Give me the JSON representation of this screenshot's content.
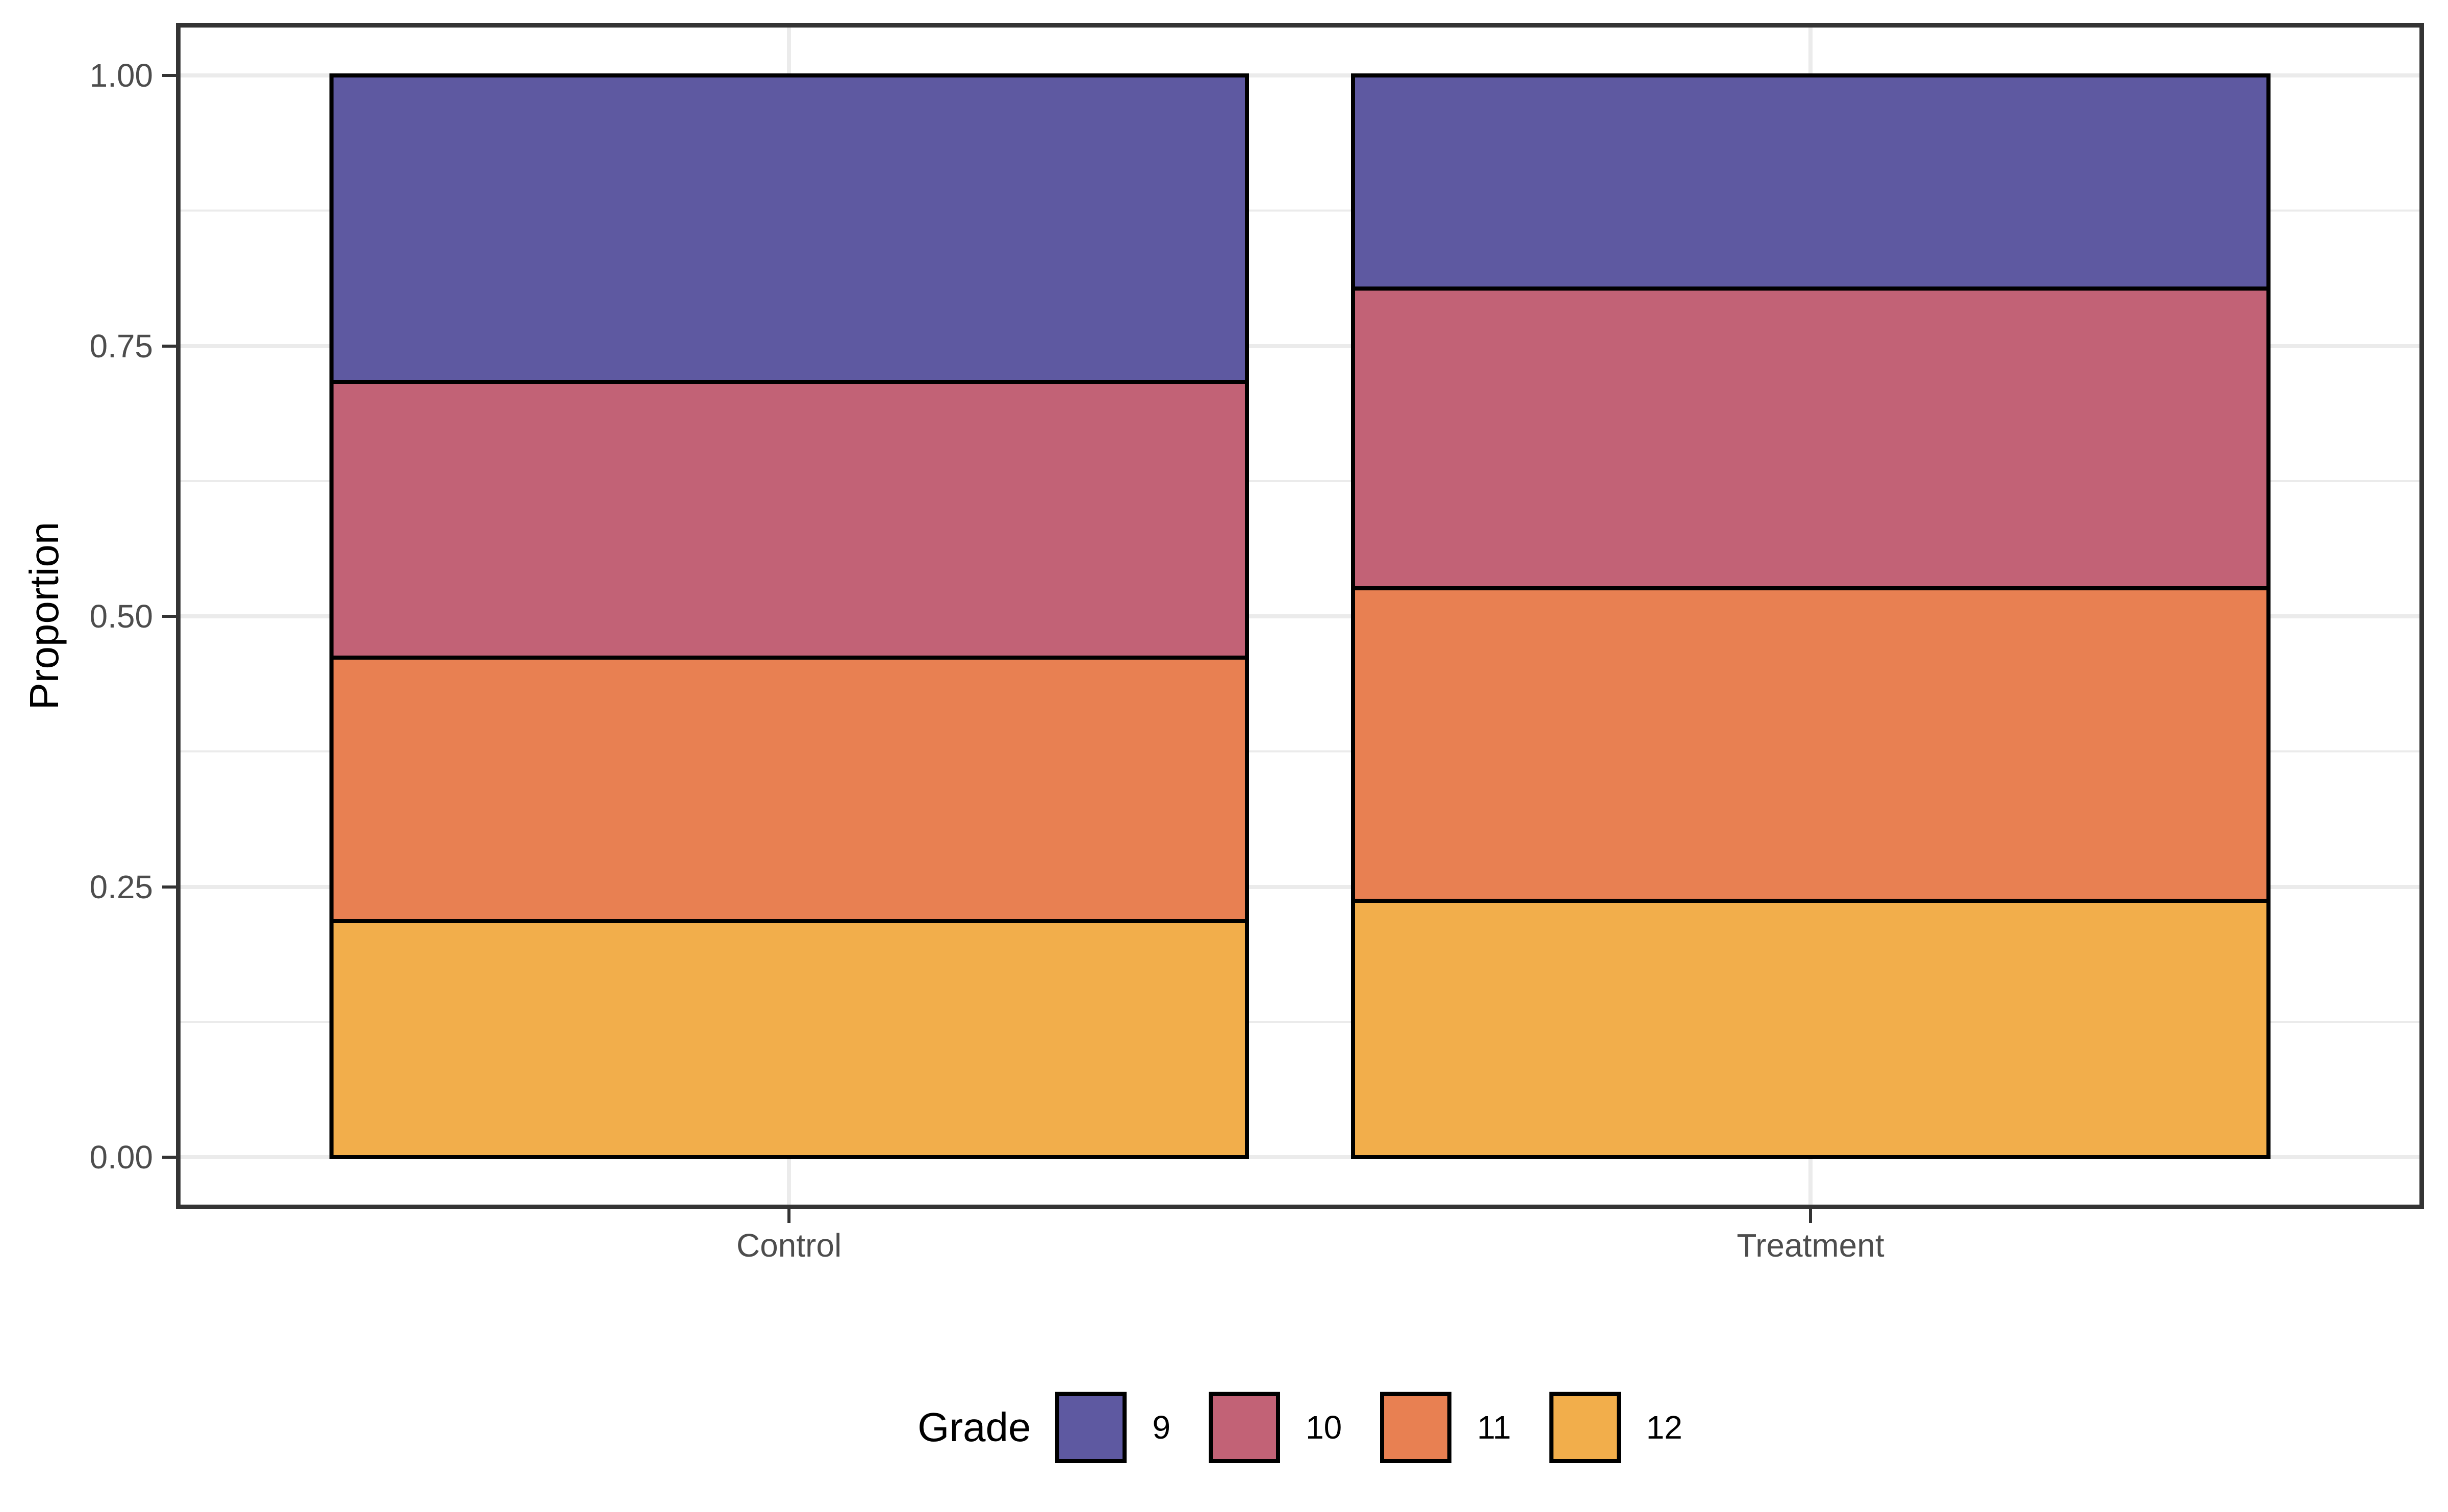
{
  "chart_data": {
    "type": "bar",
    "variant": "stacked-proportion",
    "orientation": "vertical",
    "title": "",
    "xlabel": "",
    "ylabel": "Proportion",
    "categories": [
      "Control",
      "Treatment"
    ],
    "series": [
      {
        "name": "9",
        "color": "#5e59a1",
        "values": [
          0.283,
          0.197
        ]
      },
      {
        "name": "10",
        "color": "#c26276",
        "values": [
          0.255,
          0.277
        ]
      },
      {
        "name": "11",
        "color": "#e88052",
        "values": [
          0.244,
          0.289
        ]
      },
      {
        "name": "12",
        "color": "#f2ae4b",
        "values": [
          0.218,
          0.237
        ]
      }
    ],
    "stack_order_bottom_to_top": [
      "12",
      "11",
      "10",
      "9"
    ],
    "ylim": [
      0,
      1
    ],
    "y_axis": {
      "title": "Proportion",
      "tick_values": [
        0,
        0.25,
        0.5,
        0.75,
        1
      ],
      "tick_labels": [
        "0.00",
        "0.25",
        "0.50",
        "0.75",
        "1.00"
      ],
      "minor_tick_values": [
        0.125,
        0.375,
        0.625,
        0.875
      ]
    },
    "x_axis": {
      "title": "",
      "tick_labels": [
        "Control",
        "Treatment"
      ]
    },
    "legend": {
      "title": "Grade",
      "position": "bottom",
      "items": [
        {
          "label": "9",
          "color": "#5e59a1"
        },
        {
          "label": "10",
          "color": "#c26276"
        },
        {
          "label": "11",
          "color": "#e88052"
        },
        {
          "label": "12",
          "color": "#f2ae4b"
        }
      ]
    },
    "grid": {
      "horizontal_major": true,
      "horizontal_minor": true,
      "vertical_major": true,
      "legend_position": "bottom"
    }
  },
  "colors": {
    "background": "#ffffff",
    "panel_background": "#ffffff",
    "panel_border": "#343434",
    "grid_major": "#ebebeb",
    "grid_minor": "#ebebeb",
    "bar_border": "#000000",
    "tick_mark": "#333333",
    "tick_label": "#4d4d4d",
    "axis_title": "#000000",
    "legend_text": "#000000"
  }
}
